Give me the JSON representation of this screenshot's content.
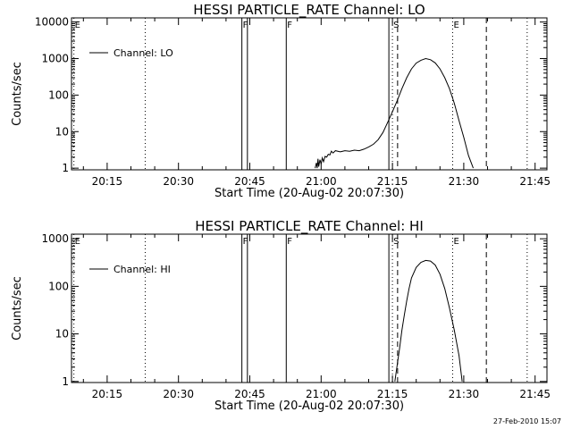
{
  "footer": {
    "timestamp": "27-Feb-2010 15:07"
  },
  "chart_data": [
    {
      "type": "line",
      "title": "HESSI PARTICLE_RATE Channel: LO",
      "xlabel": "Start Time (20-Aug-02 20:07:30)",
      "ylabel": "Counts/sec",
      "yscale": "log",
      "ylim": [
        0.9,
        13000
      ],
      "xlim": [
        "20:07:30",
        "21:47:30"
      ],
      "x_ticks": [
        "20:15",
        "20:30",
        "20:45",
        "21:00",
        "21:15",
        "21:30",
        "21:45"
      ],
      "y_ticks": [
        {
          "value": 1,
          "label": "1"
        },
        {
          "value": 10,
          "label": "10"
        },
        {
          "value": 100,
          "label": "100"
        },
        {
          "value": 1000,
          "label": "1000"
        },
        {
          "value": 10000,
          "label": "10000"
        }
      ],
      "legend": {
        "position": "top-left",
        "entries": [
          "Channel: LO"
        ]
      },
      "series": [
        {
          "name": "Channel: LO",
          "points": [
            [
              "20:58:45",
              1
            ],
            [
              "20:59:00",
              1.4
            ],
            [
              "20:59:10",
              1
            ],
            [
              "20:59:20",
              1.8
            ],
            [
              "20:59:30",
              1.1
            ],
            [
              "20:59:45",
              1.7
            ],
            [
              "21:00:00",
              1.3
            ],
            [
              "21:00:15",
              1.9
            ],
            [
              "21:00:30",
              1.5
            ],
            [
              "21:00:50",
              2.1
            ],
            [
              "21:01:10",
              2.0
            ],
            [
              "21:01:30",
              2.4
            ],
            [
              "21:01:50",
              2.3
            ],
            [
              "21:02:10",
              2.9
            ],
            [
              "21:02:30",
              2.6
            ],
            [
              "21:03:00",
              3.0
            ],
            [
              "21:04:00",
              2.8
            ],
            [
              "21:05:00",
              3.0
            ],
            [
              "21:06:00",
              2.9
            ],
            [
              "21:07:00",
              3.1
            ],
            [
              "21:08:00",
              3.0
            ],
            [
              "21:09:00",
              3.3
            ],
            [
              "21:10:00",
              3.8
            ],
            [
              "21:11:00",
              4.5
            ],
            [
              "21:12:00",
              6.0
            ],
            [
              "21:13:00",
              9.5
            ],
            [
              "21:14:00",
              18
            ],
            [
              "21:15:00",
              35
            ],
            [
              "21:16:00",
              70
            ],
            [
              "21:17:00",
              150
            ],
            [
              "21:18:00",
              300
            ],
            [
              "21:19:00",
              520
            ],
            [
              "21:20:00",
              750
            ],
            [
              "21:21:00",
              900
            ],
            [
              "21:22:00",
              1000
            ],
            [
              "21:23:00",
              930
            ],
            [
              "21:24:00",
              760
            ],
            [
              "21:25:00",
              520
            ],
            [
              "21:26:00",
              300
            ],
            [
              "21:27:00",
              150
            ],
            [
              "21:28:00",
              60
            ],
            [
              "21:29:00",
              20
            ],
            [
              "21:30:00",
              7
            ],
            [
              "21:31:00",
              2.2
            ],
            [
              "21:32:00",
              1
            ]
          ]
        }
      ],
      "markers": [
        {
          "time": "20:08:00",
          "style": "dotted",
          "label": "E"
        },
        {
          "time": "20:23:00",
          "style": "dotted",
          "label": ""
        },
        {
          "time": "20:43:20",
          "style": "solid",
          "label": "F"
        },
        {
          "time": "20:44:30",
          "style": "solid",
          "label": ""
        },
        {
          "time": "20:52:40",
          "style": "solid",
          "label": "F"
        },
        {
          "time": "21:14:15",
          "style": "solid",
          "label": ""
        },
        {
          "time": "21:15:00",
          "style": "dotted",
          "label": "S"
        },
        {
          "time": "21:16:05",
          "style": "dashed",
          "label": ""
        },
        {
          "time": "21:27:40",
          "style": "dotted",
          "label": "E"
        },
        {
          "time": "21:34:45",
          "style": "dashed",
          "label": ""
        },
        {
          "time": "21:43:20",
          "style": "dotted",
          "label": ""
        }
      ]
    },
    {
      "type": "line",
      "title": "HESSI PARTICLE_RATE Channel: HI",
      "xlabel": "Start Time (20-Aug-02 20:07:30)",
      "ylabel": "Counts/sec",
      "yscale": "log",
      "ylim": [
        0.95,
        1250
      ],
      "xlim": [
        "20:07:30",
        "21:47:30"
      ],
      "x_ticks": [
        "20:15",
        "20:30",
        "20:45",
        "21:00",
        "21:15",
        "21:30",
        "21:45"
      ],
      "y_ticks": [
        {
          "value": 1,
          "label": "1"
        },
        {
          "value": 10,
          "label": "10"
        },
        {
          "value": 100,
          "label": "100"
        },
        {
          "value": 1000,
          "label": "1000"
        }
      ],
      "legend": {
        "position": "top-left",
        "entries": [
          "Channel: HI"
        ]
      },
      "series": [
        {
          "name": "Channel: HI",
          "points": [
            [
              "21:15:30",
              1
            ],
            [
              "21:16:00",
              2.2
            ],
            [
              "21:16:30",
              5
            ],
            [
              "21:17:00",
              12
            ],
            [
              "21:17:30",
              25
            ],
            [
              "21:18:00",
              50
            ],
            [
              "21:18:30",
              90
            ],
            [
              "21:19:00",
              150
            ],
            [
              "21:20:00",
              250
            ],
            [
              "21:21:00",
              320
            ],
            [
              "21:22:00",
              350
            ],
            [
              "21:23:00",
              340
            ],
            [
              "21:24:00",
              280
            ],
            [
              "21:25:00",
              180
            ],
            [
              "21:26:00",
              90
            ],
            [
              "21:27:00",
              35
            ],
            [
              "21:28:00",
              12
            ],
            [
              "21:29:00",
              3.5
            ],
            [
              "21:29:40",
              1
            ]
          ]
        }
      ],
      "markers": [
        {
          "time": "20:08:00",
          "style": "dotted",
          "label": "E"
        },
        {
          "time": "20:23:00",
          "style": "dotted",
          "label": ""
        },
        {
          "time": "20:43:20",
          "style": "solid",
          "label": "F"
        },
        {
          "time": "20:44:30",
          "style": "solid",
          "label": ""
        },
        {
          "time": "20:52:40",
          "style": "solid",
          "label": "F"
        },
        {
          "time": "21:14:15",
          "style": "solid",
          "label": ""
        },
        {
          "time": "21:15:00",
          "style": "dotted",
          "label": "S"
        },
        {
          "time": "21:16:05",
          "style": "dashed",
          "label": ""
        },
        {
          "time": "21:27:40",
          "style": "dotted",
          "label": "E"
        },
        {
          "time": "21:34:45",
          "style": "dashed",
          "label": ""
        },
        {
          "time": "21:43:20",
          "style": "dotted",
          "label": ""
        }
      ]
    }
  ]
}
